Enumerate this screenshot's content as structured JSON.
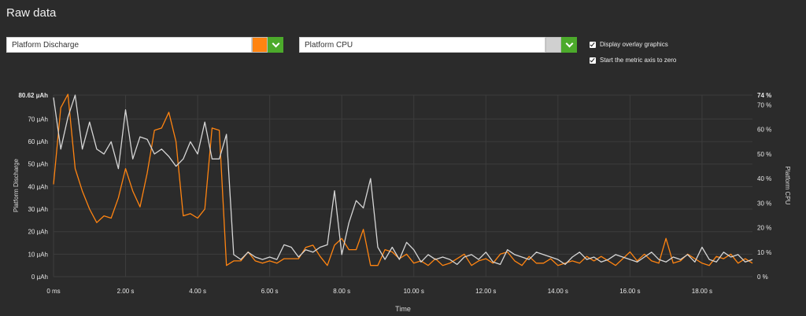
{
  "page": {
    "title": "Raw data"
  },
  "left_metric": {
    "value": "Platform Discharge",
    "color": "#ff8411"
  },
  "right_metric": {
    "value": "Platform CPU",
    "color": "#d0d0d0"
  },
  "options": [
    {
      "label": "Display overlay graphics",
      "checked": true
    },
    {
      "label": "Start the metric axis to zero",
      "checked": true
    }
  ],
  "icons": {
    "dropdown": "chevron-down-icon",
    "checkbox": "check-icon"
  },
  "chart_data": {
    "type": "line",
    "xlabel": "Time",
    "ylabel_left": "Platform Discharge",
    "ylabel_right": "Platform CPU",
    "xlim": [
      0,
      19.4
    ],
    "ylim_left": [
      0,
      80.62
    ],
    "ylim_right": [
      0,
      74
    ],
    "grid": true,
    "x_ticks": [
      {
        "v": 0,
        "label": "0 ms"
      },
      {
        "v": 2,
        "label": "2.00 s"
      },
      {
        "v": 4,
        "label": "4.00 s"
      },
      {
        "v": 6,
        "label": "6.00 s"
      },
      {
        "v": 8,
        "label": "8.00 s"
      },
      {
        "v": 10,
        "label": "10.00 s"
      },
      {
        "v": 12,
        "label": "12.00 s"
      },
      {
        "v": 14,
        "label": "14.00 s"
      },
      {
        "v": 16,
        "label": "16.00 s"
      },
      {
        "v": 18,
        "label": "18.00 s"
      }
    ],
    "y_ticks_left": [
      {
        "v": 0,
        "label": "0 µAh"
      },
      {
        "v": 10,
        "label": "10 µAh"
      },
      {
        "v": 20,
        "label": "20 µAh"
      },
      {
        "v": 30,
        "label": "30 µAh"
      },
      {
        "v": 40,
        "label": "40 µAh"
      },
      {
        "v": 50,
        "label": "50 µAh"
      },
      {
        "v": 60,
        "label": "60 µAh"
      },
      {
        "v": 70,
        "label": "70 µAh"
      },
      {
        "v": 80.62,
        "label": "80.62 µAh"
      }
    ],
    "y_ticks_right": [
      {
        "v": 0,
        "label": "0 %"
      },
      {
        "v": 10,
        "label": "10 %"
      },
      {
        "v": 20,
        "label": "20 %"
      },
      {
        "v": 30,
        "label": "30 %"
      },
      {
        "v": 40,
        "label": "40 %"
      },
      {
        "v": 50,
        "label": "50 %"
      },
      {
        "v": 60,
        "label": "60 %"
      },
      {
        "v": 70,
        "label": "70 %"
      },
      {
        "v": 74,
        "label": "74 %"
      }
    ],
    "series": [
      {
        "name": "Platform Discharge",
        "axis": "left",
        "color": "#ff8411",
        "x": [
          0,
          0.2,
          0.4,
          0.6,
          0.8,
          1.0,
          1.2,
          1.4,
          1.6,
          1.8,
          2.0,
          2.2,
          2.4,
          2.6,
          2.8,
          3.0,
          3.2,
          3.4,
          3.6,
          3.8,
          4.0,
          4.2,
          4.4,
          4.6,
          4.8,
          5.0,
          5.2,
          5.4,
          5.6,
          5.8,
          6.0,
          6.2,
          6.4,
          6.6,
          6.8,
          7.0,
          7.2,
          7.4,
          7.6,
          7.8,
          8.0,
          8.2,
          8.4,
          8.6,
          8.8,
          9.0,
          9.2,
          9.4,
          9.6,
          9.8,
          10.0,
          10.2,
          10.4,
          10.6,
          10.8,
          11.0,
          11.2,
          11.4,
          11.6,
          11.8,
          12.0,
          12.2,
          12.4,
          12.6,
          12.8,
          13.0,
          13.2,
          13.4,
          13.6,
          13.8,
          14.0,
          14.2,
          14.4,
          14.6,
          14.8,
          15.0,
          15.2,
          15.4,
          15.6,
          15.8,
          16.0,
          16.2,
          16.4,
          16.6,
          16.8,
          17.0,
          17.2,
          17.4,
          17.6,
          17.8,
          18.0,
          18.2,
          18.4,
          18.6,
          18.8,
          19.0,
          19.2,
          19.4
        ],
        "values": [
          41,
          75,
          81,
          48,
          38,
          30,
          24,
          27,
          26,
          35,
          48,
          38,
          31,
          46,
          65,
          66,
          73,
          60,
          27,
          28,
          26,
          30,
          66,
          65,
          5,
          7,
          7,
          11,
          7,
          6,
          7,
          6,
          8,
          8,
          8,
          13,
          14,
          9,
          5,
          14,
          17,
          12,
          12,
          21,
          5,
          5,
          12,
          11,
          8,
          10,
          6,
          7,
          5,
          8,
          5,
          6,
          8,
          10,
          5,
          7,
          8,
          6,
          10,
          11,
          7,
          5,
          9,
          6,
          6,
          8,
          5,
          6,
          7,
          6,
          9,
          7,
          9,
          7,
          5,
          8,
          11,
          7,
          10,
          7,
          6,
          17,
          6,
          7,
          10,
          8,
          6,
          5,
          9,
          8,
          10,
          6,
          8,
          6
        ]
      },
      {
        "name": "Platform CPU",
        "axis": "right",
        "color": "#d6d6d6",
        "x": [
          0,
          0.2,
          0.4,
          0.6,
          0.8,
          1.0,
          1.2,
          1.4,
          1.6,
          1.8,
          2.0,
          2.2,
          2.4,
          2.6,
          2.8,
          3.0,
          3.2,
          3.4,
          3.6,
          3.8,
          4.0,
          4.2,
          4.4,
          4.6,
          4.8,
          5.0,
          5.2,
          5.4,
          5.6,
          5.8,
          6.0,
          6.2,
          6.4,
          6.6,
          6.8,
          7.0,
          7.2,
          7.4,
          7.6,
          7.8,
          8.0,
          8.2,
          8.4,
          8.6,
          8.8,
          9.0,
          9.2,
          9.4,
          9.6,
          9.8,
          10.0,
          10.2,
          10.4,
          10.6,
          10.8,
          11.0,
          11.2,
          11.4,
          11.6,
          11.8,
          12.0,
          12.2,
          12.4,
          12.6,
          12.8,
          13.0,
          13.2,
          13.4,
          13.6,
          13.8,
          14.0,
          14.2,
          14.4,
          14.6,
          14.8,
          15.0,
          15.2,
          15.4,
          15.6,
          15.8,
          16.0,
          16.2,
          16.4,
          16.6,
          16.8,
          17.0,
          17.2,
          17.4,
          17.6,
          17.8,
          18.0,
          18.2,
          18.4,
          18.6,
          18.8,
          19.0,
          19.2,
          19.4
        ],
        "values": [
          73,
          52,
          65,
          74,
          52,
          63,
          52,
          50,
          55,
          44,
          68,
          48,
          57,
          56,
          50,
          52,
          49,
          45,
          48,
          55,
          50,
          63,
          48,
          48,
          58,
          9,
          7,
          10,
          8,
          7,
          8,
          7,
          13,
          12,
          8,
          11,
          10,
          12,
          13,
          35,
          9,
          22,
          31,
          28,
          40,
          12,
          7,
          12,
          7,
          14,
          11,
          6,
          9,
          7,
          8,
          7,
          5,
          8,
          9,
          7,
          10,
          6,
          5,
          11,
          9,
          8,
          7,
          10,
          9,
          8,
          7,
          5,
          8,
          10,
          7,
          8,
          6,
          7,
          9,
          8,
          7,
          6,
          8,
          10,
          7,
          6,
          8,
          7,
          9,
          6,
          12,
          7,
          6,
          10,
          8,
          9,
          6,
          7
        ]
      }
    ]
  }
}
